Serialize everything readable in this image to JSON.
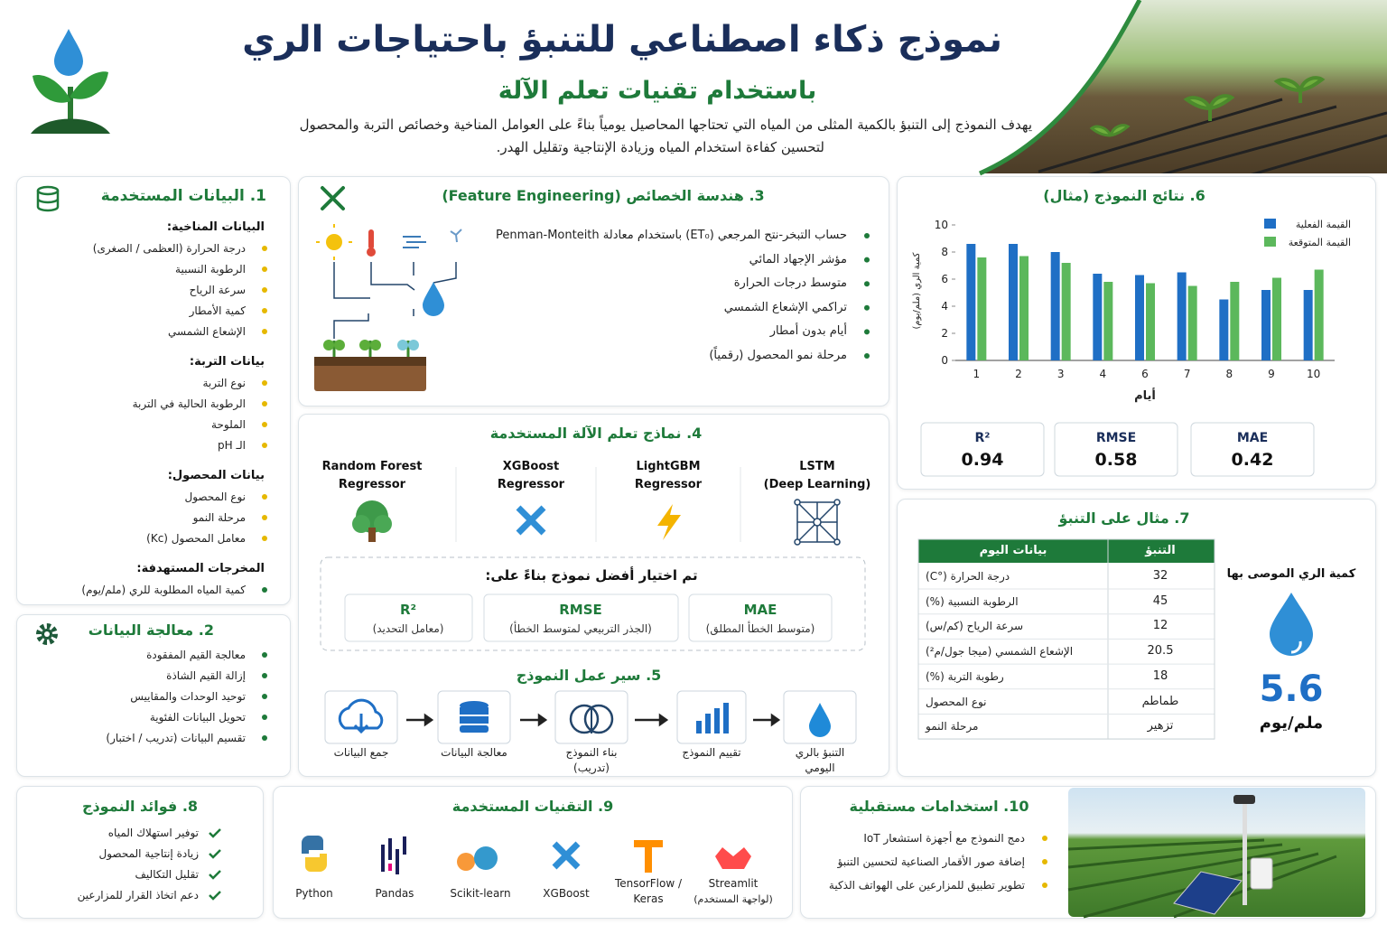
{
  "header": {
    "title": "نموذج ذكاء اصطناعي للتنبؤ باحتياجات الري",
    "subtitle": "باستخدام تقنيات تعلم الآلة",
    "description": [
      "يهدف النموذج إلى التنبؤ بالكمية المثلى من المياه التي تحتاجها المحاصيل يومياً بناءً على العوامل المناخية وخصائص التربة والمحصول",
      "لتحسين كفاءة استخدام المياه وزيادة الإنتاجية وتقليل الهدر."
    ]
  },
  "data_section": {
    "title": "1. البيانات المستخدمة",
    "groups": [
      {
        "heading": "البيانات المناخية:",
        "items": [
          "درجة الحرارة (العظمى / الصغرى)",
          "الرطوبة النسبية",
          "سرعة الرياح",
          "كمية الأمطار",
          "الإشعاع الشمسي"
        ]
      },
      {
        "heading": "بيانات التربة:",
        "items": [
          "نوع التربة",
          "الرطوبة الحالية في التربة",
          "الملوحة",
          "الـ pH"
        ]
      },
      {
        "heading": "بيانات المحصول:",
        "items": [
          "نوع المحصول",
          "مرحلة النمو",
          "معامل المحصول (Kc)"
        ]
      },
      {
        "heading": "المخرجات المستهدفة:",
        "items": [
          "كمية المياه المطلوبة للري (ملم/يوم)"
        ]
      }
    ]
  },
  "processing": {
    "title": "2. معالجة البيانات",
    "items": [
      "معالجة القيم المفقودة",
      "إزالة القيم الشاذة",
      "توحيد الوحدات والمقاييس",
      "تحويل البيانات الفئوية",
      "تقسيم البيانات (تدريب / اختبار)"
    ]
  },
  "features": {
    "title": "3. هندسة الخصائص (Feature Engineering)",
    "items": [
      "حساب التبخر-نتح المرجعي (ET₀) باستخدام معادلة Penman-Monteith",
      "مؤشر الإجهاد المائي",
      "متوسط درجات الحرارة",
      "تراكمي الإشعاع الشمسي",
      "أيام بدون أمطار",
      "مرحلة نمو المحصول (رقمياً)"
    ]
  },
  "models": {
    "title": "4. نماذج تعلم الآلة المستخدمة",
    "items": [
      {
        "name": "Random Forest",
        "sub": "Regressor"
      },
      {
        "name": "XGBoost",
        "sub": "Regressor"
      },
      {
        "name": "LightGBM",
        "sub": "Regressor"
      },
      {
        "name": "LSTM",
        "sub": "(Deep Learning)"
      }
    ],
    "selection_title": "تم اختيار أفضل نموذج بناءً على:",
    "metrics": [
      {
        "name": "R²",
        "desc": "(معامل التحديد)"
      },
      {
        "name": "RMSE",
        "desc": "(الجذر التربيعي لمتوسط الخطأ)"
      },
      {
        "name": "MAE",
        "desc": "(متوسط الخطأ المطلق)"
      }
    ]
  },
  "workflow": {
    "title": "5. سير عمل النموذج",
    "steps": [
      "جمع البيانات",
      "معالجة البيانات",
      "بناء النموذج (تدريب)",
      "تقييم النموذج",
      "التنبؤ بالري اليومي"
    ]
  },
  "chart_data": {
    "type": "bar",
    "title": "6. نتائج النموذج (مثال)",
    "x_label": "أيام",
    "y_label": "كمية الري (ملم/يوم)",
    "categories": [
      "1",
      "2",
      "3",
      "4",
      "6",
      "7",
      "8",
      "9",
      "10"
    ],
    "series": [
      {
        "name": "القيمة الفعلية",
        "color": "#1f6fc5",
        "values": [
          8.6,
          8.6,
          8.0,
          6.4,
          6.3,
          6.5,
          4.5,
          5.2,
          5.2
        ]
      },
      {
        "name": "القيمة المتوقعة",
        "color": "#5cb85c",
        "values": [
          7.6,
          7.7,
          7.2,
          5.8,
          5.7,
          5.5,
          5.8,
          6.1,
          6.7
        ]
      }
    ],
    "ylim": [
      0,
      10
    ],
    "yticks": [
      0,
      2,
      4,
      6,
      8,
      10
    ],
    "grid": false,
    "legend": "top-right"
  },
  "results_metrics": [
    {
      "name": "R²",
      "value": 0.94
    },
    {
      "name": "RMSE",
      "value": 0.58
    },
    {
      "name": "MAE",
      "value": 0.42
    }
  ],
  "prediction": {
    "title": "7. مثال على التنبؤ",
    "headers": [
      "بيانات اليوم",
      "التنبؤ"
    ],
    "rows": [
      [
        "درجة الحرارة (°C)",
        32
      ],
      [
        "الرطوبة النسبية (%)",
        45
      ],
      [
        "سرعة الرياح (كم/س)",
        12
      ],
      [
        "الإشعاع الشمسي (ميجا جول/م²)",
        20.5
      ],
      [
        "رطوبة التربة (%)",
        18
      ],
      [
        "نوع المحصول",
        "طماطم"
      ],
      [
        "مرحلة النمو",
        "تزهير"
      ]
    ],
    "recommend_label": "كمية الري الموصى بها",
    "recommend_value": 5.6,
    "recommend_unit": "ملم/يوم"
  },
  "benefits": {
    "title": "8. فوائد النموذج",
    "items": [
      "توفير استهلاك المياه",
      "زيادة إنتاجية المحصول",
      "تقليل التكاليف",
      "دعم اتخاذ القرار للمزارعين"
    ]
  },
  "technologies": {
    "title": "9. التقنيات المستخدمة",
    "items": [
      {
        "name": "Python"
      },
      {
        "name": "Pandas"
      },
      {
        "name": "Scikit-learn"
      },
      {
        "name": "XGBoost"
      },
      {
        "name": "TensorFlow / Keras"
      },
      {
        "name": "Streamlit",
        "note": "(لواجهة المستخدم)"
      }
    ]
  },
  "future": {
    "title": "10. استخدامات مستقبلية",
    "items": [
      "دمج النموذج مع أجهزة استشعار IoT",
      "إضافة صور الأقمار الصناعية لتحسين التنبؤ",
      "تطوير تطبيق للمزارعين على الهواتف الذكية"
    ]
  }
}
